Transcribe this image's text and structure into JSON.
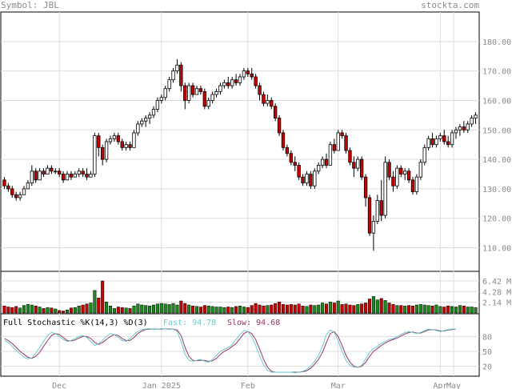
{
  "header": {
    "symbol_label": "Symbol:",
    "symbol": "JBL",
    "brand": "stockta.com"
  },
  "colors": {
    "up_candle": "#ffffff",
    "down_candle": "#cc0000",
    "up_volume": "#1a8a1a",
    "down_volume": "#cc0000",
    "fast_line": "#66cccc",
    "slow_line": "#993366",
    "grid": "#dddddd"
  },
  "chart_data": [
    {
      "type": "candlestick",
      "title": "",
      "x_tick_labels": [
        "Dec",
        "Jan 2025",
        "Feb",
        "Mar",
        "Apr",
        "May"
      ],
      "y_tick_labels": [
        "110.00",
        "120.00",
        "130.00",
        "140.00",
        "150.00",
        "160.00",
        "170.00",
        "180.00"
      ],
      "ylim": [
        102,
        190
      ],
      "grid": true,
      "candles": [
        [
          133,
          134,
          130,
          131
        ],
        [
          131,
          132,
          129,
          130
        ],
        [
          130,
          131,
          127,
          128
        ],
        [
          128,
          129,
          126,
          127
        ],
        [
          127,
          129,
          126,
          128
        ],
        [
          128,
          131,
          128,
          130
        ],
        [
          130,
          133,
          130,
          132
        ],
        [
          132,
          138,
          131,
          136
        ],
        [
          136,
          137,
          132,
          133
        ],
        [
          133,
          137,
          133,
          136
        ],
        [
          136,
          137,
          134,
          135
        ],
        [
          135,
          138,
          135,
          137
        ],
        [
          137,
          138,
          135,
          136
        ],
        [
          136,
          137,
          135,
          136
        ],
        [
          136,
          137,
          134,
          135
        ],
        [
          135,
          136,
          132,
          133
        ],
        [
          133,
          136,
          133,
          135
        ],
        [
          135,
          136,
          133,
          134
        ],
        [
          134,
          136,
          134,
          135
        ],
        [
          135,
          137,
          134,
          136
        ],
        [
          136,
          137,
          134,
          135
        ],
        [
          135,
          137,
          133,
          134
        ],
        [
          134,
          136,
          134,
          135
        ],
        [
          135,
          149,
          134,
          148
        ],
        [
          148,
          149,
          141,
          144
        ],
        [
          144,
          145,
          138,
          140
        ],
        [
          140,
          147,
          139,
          146
        ],
        [
          146,
          148,
          145,
          147
        ],
        [
          147,
          149,
          146,
          148
        ],
        [
          148,
          149,
          145,
          146
        ],
        [
          146,
          147,
          143,
          144
        ],
        [
          144,
          146,
          143,
          145
        ],
        [
          145,
          146,
          143,
          144
        ],
        [
          144,
          150,
          144,
          149
        ],
        [
          149,
          153,
          148,
          152
        ],
        [
          152,
          154,
          151,
          153
        ],
        [
          153,
          155,
          151,
          154
        ],
        [
          154,
          156,
          152,
          155
        ],
        [
          155,
          158,
          154,
          157
        ],
        [
          157,
          161,
          156,
          160
        ],
        [
          160,
          162,
          159,
          161
        ],
        [
          161,
          165,
          160,
          164
        ],
        [
          164,
          168,
          163,
          167
        ],
        [
          167,
          171,
          166,
          170
        ],
        [
          170,
          174,
          169,
          172
        ],
        [
          172,
          173,
          163,
          165
        ],
        [
          165,
          166,
          157,
          160
        ],
        [
          160,
          166,
          159,
          165
        ],
        [
          165,
          166,
          161,
          162
        ],
        [
          162,
          165,
          162,
          164
        ],
        [
          164,
          165,
          162,
          163
        ],
        [
          163,
          164,
          157,
          158
        ],
        [
          158,
          161,
          157,
          160
        ],
        [
          160,
          163,
          159,
          162
        ],
        [
          162,
          164,
          161,
          163
        ],
        [
          163,
          166,
          162,
          165
        ],
        [
          165,
          167,
          164,
          166
        ],
        [
          166,
          168,
          164,
          165
        ],
        [
          165,
          168,
          164,
          167
        ],
        [
          167,
          169,
          165,
          166
        ],
        [
          166,
          169,
          165,
          168
        ],
        [
          168,
          171,
          167,
          170
        ],
        [
          170,
          171,
          168,
          169
        ],
        [
          169,
          171,
          167,
          168
        ],
        [
          168,
          169,
          164,
          165
        ],
        [
          165,
          166,
          160,
          162
        ],
        [
          162,
          163,
          158,
          159
        ],
        [
          159,
          162,
          158,
          160
        ],
        [
          160,
          161,
          157,
          158
        ],
        [
          158,
          159,
          153,
          154
        ],
        [
          154,
          155,
          148,
          149
        ],
        [
          149,
          150,
          143,
          144
        ],
        [
          144,
          145,
          141,
          142
        ],
        [
          142,
          143,
          138,
          139
        ],
        [
          139,
          141,
          136,
          138
        ],
        [
          138,
          139,
          133,
          134
        ],
        [
          134,
          135,
          131,
          132
        ],
        [
          132,
          136,
          131,
          135
        ],
        [
          135,
          136,
          130,
          131
        ],
        [
          131,
          137,
          130,
          136
        ],
        [
          136,
          139,
          135,
          138
        ],
        [
          138,
          141,
          137,
          140
        ],
        [
          140,
          142,
          137,
          138
        ],
        [
          138,
          146,
          138,
          145
        ],
        [
          145,
          147,
          142,
          143
        ],
        [
          143,
          150,
          143,
          149
        ],
        [
          149,
          150,
          147,
          148
        ],
        [
          148,
          149,
          142,
          143
        ],
        [
          143,
          144,
          138,
          139
        ],
        [
          139,
          141,
          134,
          137
        ],
        [
          137,
          141,
          136,
          140
        ],
        [
          140,
          141,
          133,
          134
        ],
        [
          134,
          135,
          124,
          127
        ],
        [
          127,
          128,
          114,
          115
        ],
        [
          115,
          121,
          109,
          119
        ],
        [
          119,
          128,
          118,
          126
        ],
        [
          126,
          133,
          119,
          121
        ],
        [
          121,
          141,
          120,
          139
        ],
        [
          139,
          140,
          133,
          134
        ],
        [
          134,
          136,
          129,
          131
        ],
        [
          131,
          138,
          130,
          137
        ],
        [
          137,
          138,
          134,
          135
        ],
        [
          135,
          137,
          133,
          136
        ],
        [
          136,
          137,
          132,
          133
        ],
        [
          133,
          134,
          128,
          129
        ],
        [
          129,
          135,
          128,
          134
        ],
        [
          134,
          140,
          133,
          139
        ],
        [
          139,
          145,
          138,
          144
        ],
        [
          144,
          148,
          143,
          147
        ],
        [
          147,
          149,
          144,
          145
        ],
        [
          145,
          148,
          144,
          147
        ],
        [
          147,
          149,
          146,
          148
        ],
        [
          148,
          150,
          145,
          146
        ],
        [
          146,
          148,
          144,
          145
        ],
        [
          145,
          150,
          144,
          149
        ],
        [
          149,
          151,
          147,
          150
        ],
        [
          150,
          152,
          148,
          151
        ],
        [
          151,
          153,
          149,
          150
        ],
        [
          150,
          153,
          149,
          152
        ],
        [
          152,
          155,
          151,
          154
        ],
        [
          154,
          156,
          152,
          155
        ]
      ]
    },
    {
      "type": "bar",
      "title": "",
      "y_tick_labels": [
        "6.42 M",
        "4.28 M",
        "2.14 M"
      ],
      "ylim": [
        0,
        8
      ],
      "values": [
        1.4,
        1.2,
        1.1,
        1.3,
        1.0,
        1.5,
        1.7,
        1.6,
        1.4,
        1.2,
        0.9,
        1.1,
        1.0,
        0.8,
        0.5,
        0.4,
        0.6,
        1.0,
        1.1,
        1.4,
        1.6,
        1.8,
        2.0,
        4.5,
        3.0,
        6.4,
        2.2,
        1.4,
        0.9,
        1.2,
        1.1,
        1.0,
        0.9,
        1.4,
        1.8,
        1.6,
        1.5,
        1.4,
        1.6,
        1.8,
        1.9,
        1.8,
        1.7,
        1.9,
        1.6,
        2.4,
        1.9,
        1.6,
        1.4,
        1.3,
        1.2,
        1.5,
        1.4,
        1.3,
        1.2,
        1.2,
        1.1,
        1.2,
        1.1,
        1.3,
        1.4,
        1.2,
        1.1,
        1.5,
        1.9,
        1.6,
        1.4,
        1.5,
        1.6,
        1.9,
        2.2,
        1.7,
        1.6,
        1.7,
        1.6,
        1.8,
        1.4,
        1.3,
        1.6,
        1.5,
        1.6,
        2.0,
        1.8,
        2.2,
        2.0,
        2.4,
        1.7,
        1.8,
        1.6,
        1.5,
        1.7,
        1.8,
        2.0,
        2.8,
        3.3,
        2.6,
        2.9,
        2.5,
        2.0,
        1.7,
        1.5,
        1.5,
        1.4,
        1.5,
        1.4,
        1.6,
        1.7,
        1.6,
        1.5,
        1.4,
        1.6,
        1.3,
        1.2,
        1.4,
        1.3,
        1.2,
        1.5,
        1.4,
        1.2,
        1.2,
        1.1
      ]
    },
    {
      "type": "line",
      "title": "Full Stochastic %K(14,3) %D(3)",
      "fast_label": "Fast:",
      "fast_value": "94.78",
      "slow_label": "Slow:",
      "slow_value": "94.68",
      "y_tick_labels": [
        "80",
        "50",
        "20"
      ],
      "ylim": [
        0,
        100
      ],
      "fast": [
        72,
        68,
        60,
        52,
        45,
        38,
        35,
        37,
        46,
        58,
        70,
        82,
        88,
        86,
        80,
        74,
        70,
        72,
        76,
        80,
        82,
        78,
        70,
        62,
        66,
        72,
        80,
        86,
        84,
        78,
        72,
        70,
        76,
        84,
        90,
        94,
        95,
        96,
        94,
        95,
        96,
        96,
        94,
        95,
        90,
        70,
        44,
        32,
        30,
        32,
        34,
        30,
        28,
        34,
        42,
        50,
        54,
        58,
        64,
        74,
        84,
        92,
        90,
        80,
        62,
        42,
        22,
        12,
        8,
        8,
        8,
        8,
        8,
        8,
        7,
        8,
        10,
        14,
        20,
        30,
        42,
        60,
        84,
        93,
        88,
        72,
        50,
        32,
        22,
        18,
        18,
        22,
        35,
        48,
        56,
        60,
        66,
        70,
        74,
        76,
        80,
        84,
        88,
        90,
        88,
        86,
        88,
        92,
        95,
        94,
        92,
        90,
        92,
        94,
        95,
        95
      ],
      "slow": [
        76,
        72,
        66,
        58,
        50,
        44,
        38,
        36,
        40,
        48,
        60,
        72,
        82,
        86,
        84,
        78,
        72,
        71,
        73,
        77,
        80,
        80,
        76,
        68,
        64,
        68,
        74,
        80,
        84,
        82,
        76,
        72,
        72,
        78,
        86,
        91,
        94,
        95,
        95,
        95,
        95,
        96,
        95,
        95,
        93,
        82,
        58,
        40,
        32,
        31,
        32,
        32,
        30,
        31,
        36,
        44,
        50,
        54,
        60,
        66,
        76,
        86,
        90,
        86,
        74,
        55,
        34,
        18,
        10,
        8,
        8,
        8,
        8,
        8,
        8,
        8,
        9,
        11,
        16,
        24,
        34,
        48,
        68,
        86,
        90,
        80,
        62,
        42,
        28,
        20,
        18,
        20,
        28,
        40,
        50,
        56,
        62,
        67,
        71,
        74,
        77,
        81,
        85,
        88,
        89,
        87,
        87,
        90,
        93,
        94,
        93,
        91,
        91,
        93,
        94,
        95
      ]
    }
  ]
}
